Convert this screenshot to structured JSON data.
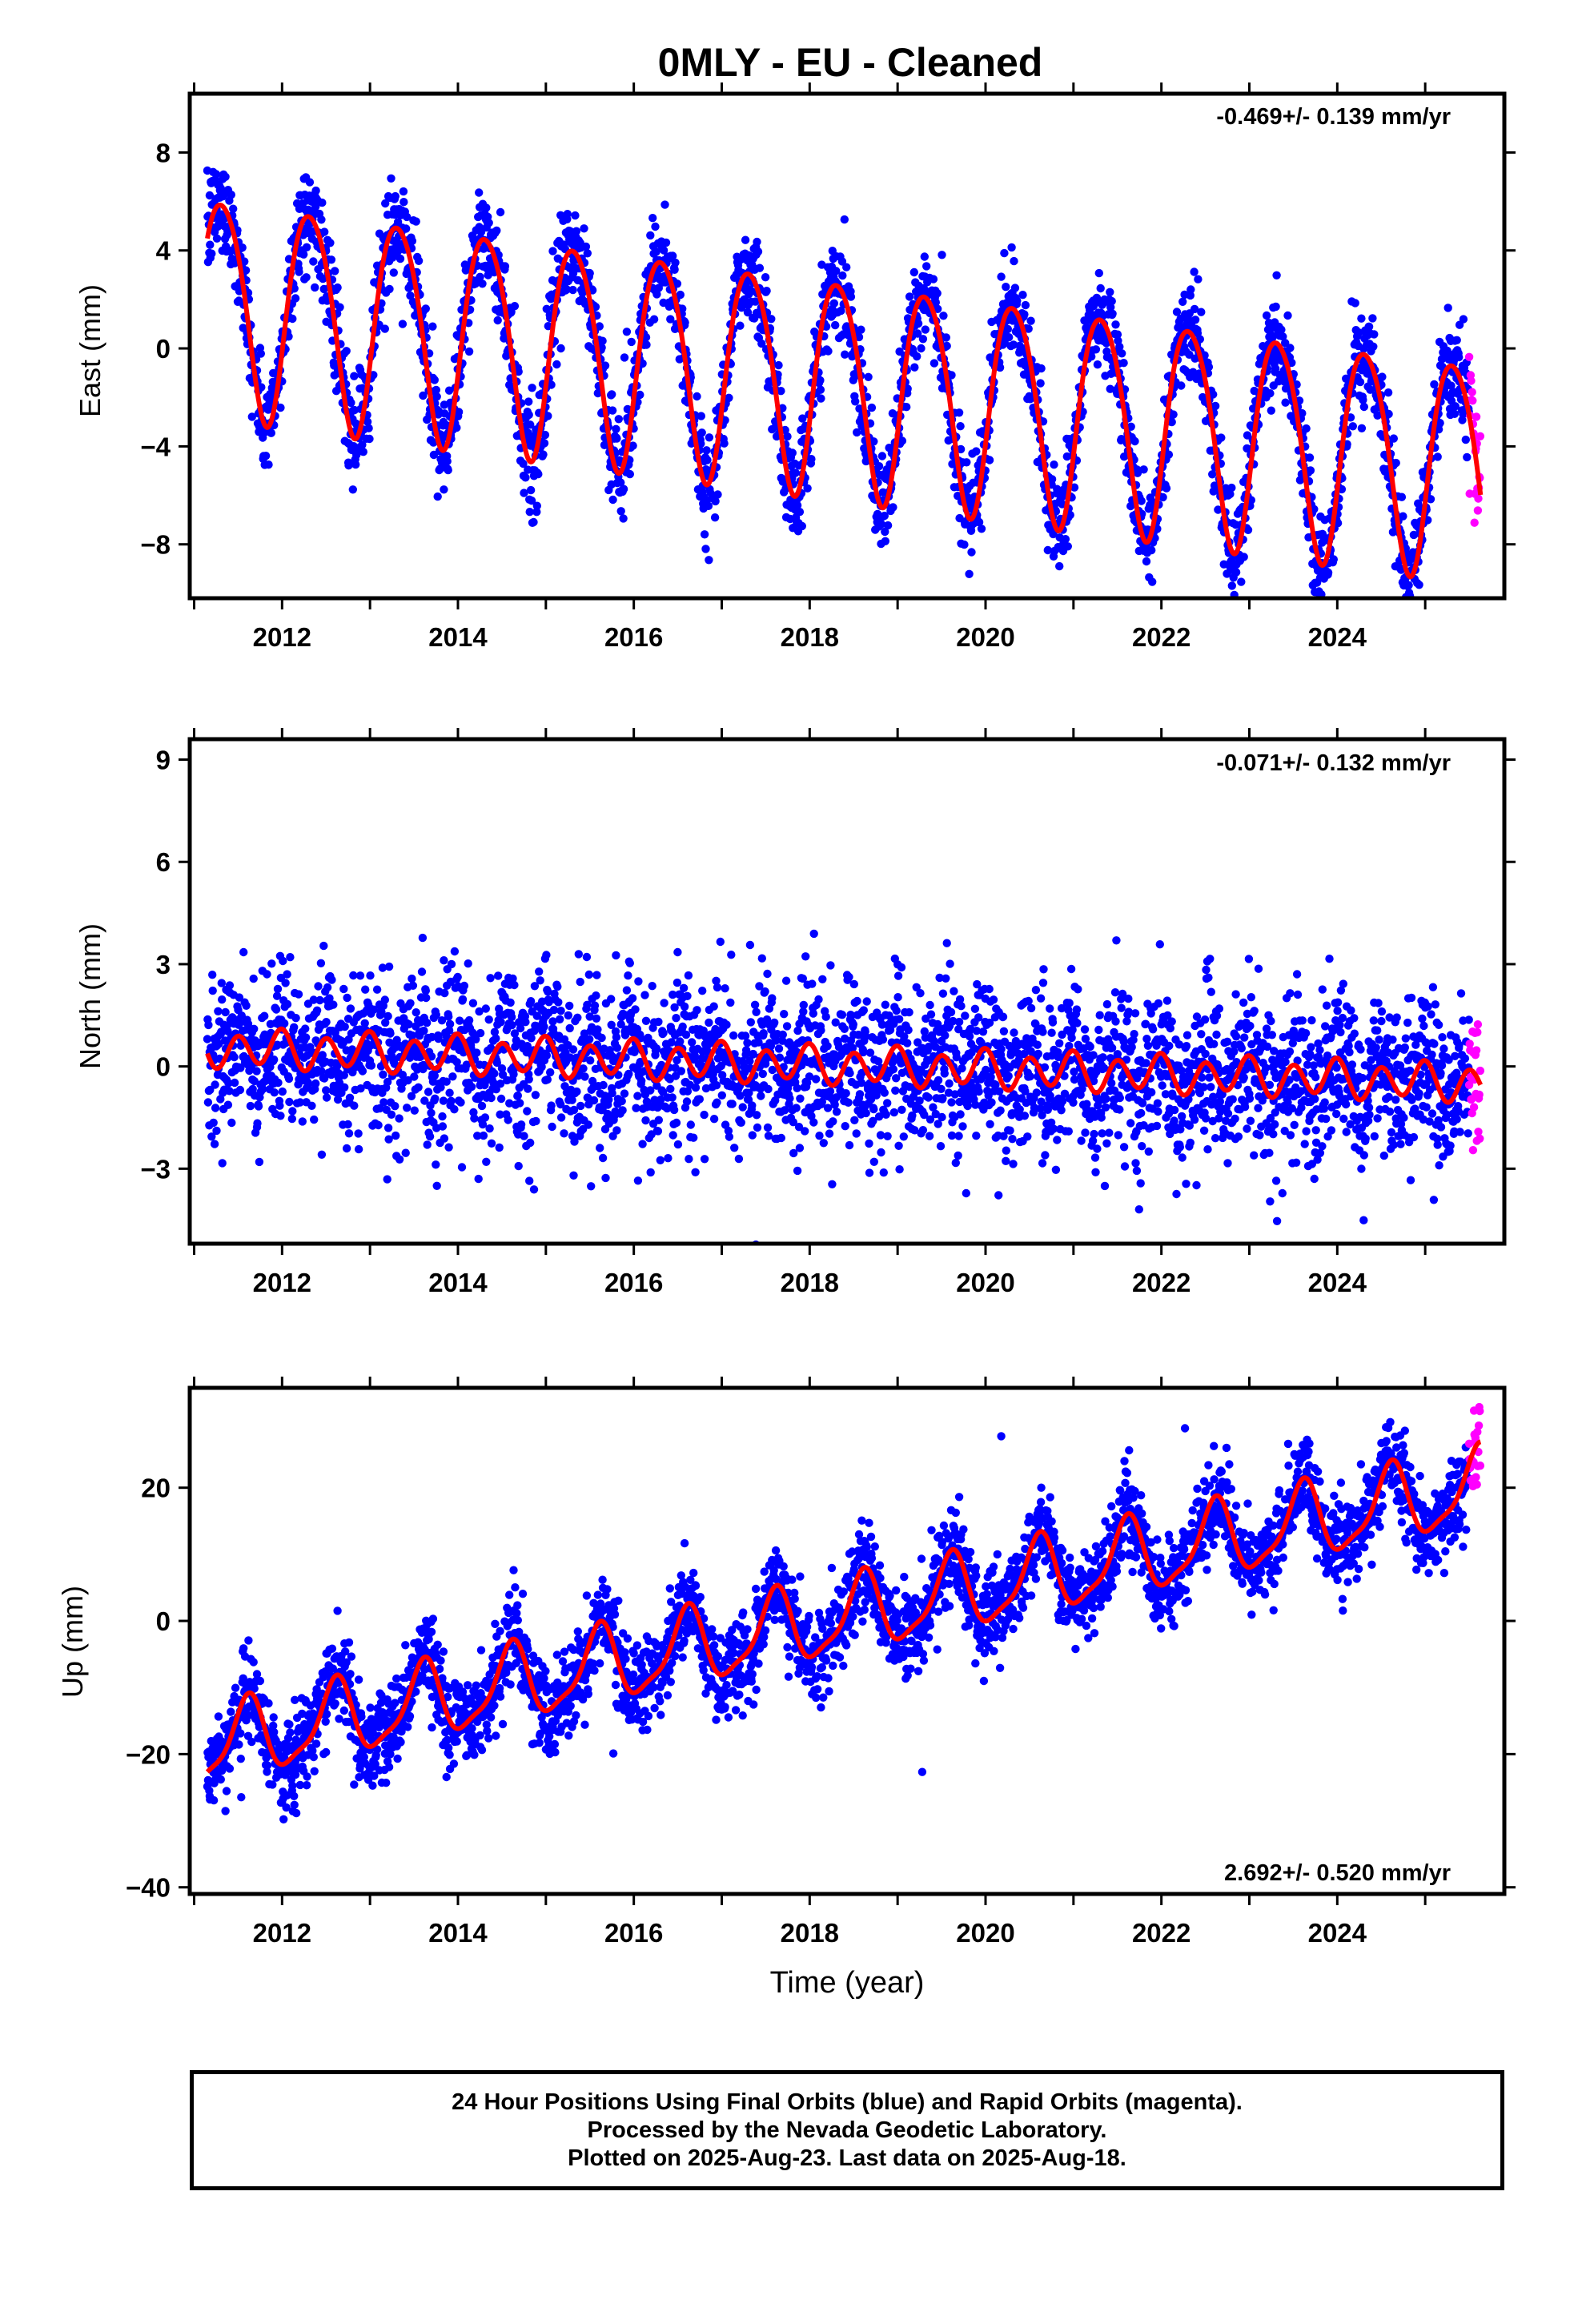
{
  "title": "0MLY  - EU - Cleaned",
  "xlabel": "Time (year)",
  "footer": {
    "line1": "24 Hour Positions Using Final Orbits (blue) and Rapid Orbits (magenta).",
    "line2": "Processed by the Nevada Geodetic Laboratory.",
    "line3": "Plotted on 2025-Aug-23. Last data on 2025-Aug-18."
  },
  "colors": {
    "final_orbits": "#0000ff",
    "rapid_orbits": "#ff00ff",
    "model_fit": "#ff0000",
    "axes": "#000000"
  },
  "chart_data": [
    {
      "type": "scatter",
      "component": "east",
      "ylabel": "East (mm)",
      "rate_label": "-0.469+/- 0.139 mm/yr",
      "xlim": [
        2010.95,
        2025.9
      ],
      "ylim": [
        -10.2,
        10.4
      ],
      "x_ticks": [
        2012,
        2014,
        2016,
        2018,
        2020,
        2022,
        2024
      ],
      "y_ticks": [
        -8,
        -4,
        0,
        4,
        8
      ],
      "model": {
        "rate": -0.469,
        "offset_2018": -1.25,
        "annual_amp": 4.4,
        "annual_peak": 0.32,
        "semiannual_amp": 0.5,
        "semiannual_peak": 0.1,
        "scatter": 1.0
      },
      "series": [
        {
          "name": "Final Orbits",
          "color": "#0000ff",
          "x_range": [
            2011.15,
            2025.5
          ]
        },
        {
          "name": "Rapid Orbits",
          "color": "#ff00ff",
          "x_range": [
            2025.5,
            2025.63
          ]
        },
        {
          "name": "Model",
          "color": "#ff0000"
        }
      ]
    },
    {
      "type": "scatter",
      "component": "north",
      "ylabel": "North (mm)",
      "rate_label": "-0.071+/- 0.132 mm/yr",
      "xlim": [
        2010.95,
        2025.9
      ],
      "ylim": [
        -5.2,
        9.6
      ],
      "x_ticks": [
        2012,
        2014,
        2016,
        2018,
        2020,
        2022,
        2024
      ],
      "y_ticks": [
        -3,
        0,
        3,
        6,
        9
      ],
      "model": {
        "rate": -0.071,
        "offset_2018": 0.05,
        "annual_amp": 0.15,
        "annual_peak": 0.9,
        "semiannual_amp": 0.5,
        "semiannual_peak": 0.0,
        "scatter": 1.15
      },
      "series": [
        {
          "name": "Final Orbits",
          "color": "#0000ff",
          "x_range": [
            2011.15,
            2025.5
          ]
        },
        {
          "name": "Rapid Orbits",
          "color": "#ff00ff",
          "x_range": [
            2025.5,
            2025.63
          ]
        },
        {
          "name": "Model",
          "color": "#ff0000"
        }
      ]
    },
    {
      "type": "scatter",
      "component": "up",
      "ylabel": "Up (mm)",
      "rate_label": "2.692+/- 0.520 mm/yr",
      "xlim": [
        2010.95,
        2025.9
      ],
      "ylim": [
        -41,
        35
      ],
      "x_ticks": [
        2012,
        2014,
        2016,
        2018,
        2020,
        2022,
        2024
      ],
      "y_ticks": [
        -40,
        -20,
        0,
        20
      ],
      "model": {
        "rate": 2.692,
        "offset_2018": -0.5,
        "annual_amp": 5.5,
        "annual_peak": 0.6,
        "semiannual_amp": 1.5,
        "semiannual_peak": 0.15,
        "scatter": 3.4
      },
      "series": [
        {
          "name": "Final Orbits",
          "color": "#0000ff",
          "x_range": [
            2011.15,
            2025.5
          ]
        },
        {
          "name": "Rapid Orbits",
          "color": "#ff00ff",
          "x_range": [
            2025.5,
            2025.63
          ]
        },
        {
          "name": "Model",
          "color": "#ff0000"
        }
      ]
    }
  ]
}
